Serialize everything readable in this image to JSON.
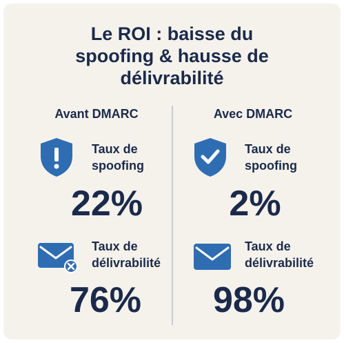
{
  "title": {
    "line1": "Le ROI : baisse du",
    "line2": "spoofing & hausse de",
    "line3": "délivrabilité"
  },
  "colors": {
    "background": "#f5f2ec",
    "text": "#1b2a4a",
    "icon_blue": "#2f6db3",
    "divider": "#c8ccd2"
  },
  "before": {
    "heading": "Avant DMARC",
    "spoofing": {
      "icon": "shield-exclamation-icon",
      "label_line1": "Taux de",
      "label_line2": "spoofing",
      "value": "22%"
    },
    "deliverability": {
      "icon": "envelope-x-icon",
      "label_line1": "Taux de",
      "label_line2": "délivrabilité",
      "value": "76%"
    }
  },
  "after": {
    "heading": "Avec DMARC",
    "spoofing": {
      "icon": "shield-check-icon",
      "label_line1": "Taux de",
      "label_line2": "spoofing",
      "value": "2%"
    },
    "deliverability": {
      "icon": "envelope-icon",
      "label_line1": "Taux de",
      "label_line2": "délivrabilité",
      "value": "98%"
    }
  }
}
